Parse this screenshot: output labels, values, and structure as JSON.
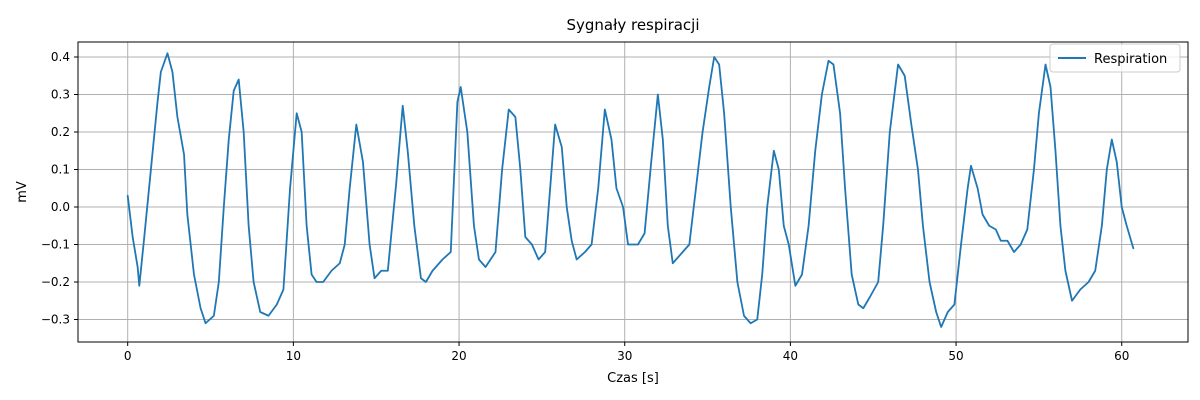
{
  "chart_data": {
    "type": "line",
    "title": "Sygnały respiracji",
    "xlabel": "Czas [s]",
    "ylabel": "mV",
    "xlim": [
      -3,
      64
    ],
    "ylim": [
      -0.36,
      0.44
    ],
    "xticks": [
      0,
      10,
      20,
      30,
      40,
      50,
      60
    ],
    "yticks": [
      -0.3,
      -0.2,
      -0.1,
      0.0,
      0.1,
      0.2,
      0.3,
      0.4
    ],
    "xtick_labels": [
      "0",
      "10",
      "20",
      "30",
      "40",
      "50",
      "60"
    ],
    "ytick_labels": [
      "−0.3",
      "−0.2",
      "−0.1",
      "0.0",
      "0.1",
      "0.2",
      "0.3",
      "0.4"
    ],
    "grid": true,
    "legend_position": "top-right",
    "colors": {
      "series": "#1f77b4",
      "grid": "#b0b0b0"
    },
    "series": [
      {
        "name": "Respiration",
        "points": [
          [
            0.0,
            0.03
          ],
          [
            0.3,
            -0.08
          ],
          [
            0.6,
            -0.16
          ],
          [
            0.7,
            -0.21
          ],
          [
            1.0,
            -0.08
          ],
          [
            1.4,
            0.1
          ],
          [
            1.8,
            0.28
          ],
          [
            2.0,
            0.36
          ],
          [
            2.4,
            0.41
          ],
          [
            2.7,
            0.36
          ],
          [
            3.0,
            0.24
          ],
          [
            3.4,
            0.14
          ],
          [
            3.6,
            -0.02
          ],
          [
            4.0,
            -0.18
          ],
          [
            4.4,
            -0.27
          ],
          [
            4.7,
            -0.31
          ],
          [
            5.2,
            -0.29
          ],
          [
            5.5,
            -0.2
          ],
          [
            5.8,
            0.0
          ],
          [
            6.1,
            0.18
          ],
          [
            6.4,
            0.31
          ],
          [
            6.7,
            0.34
          ],
          [
            7.0,
            0.2
          ],
          [
            7.3,
            -0.05
          ],
          [
            7.6,
            -0.2
          ],
          [
            8.0,
            -0.28
          ],
          [
            8.5,
            -0.29
          ],
          [
            9.0,
            -0.26
          ],
          [
            9.4,
            -0.22
          ],
          [
            9.8,
            0.05
          ],
          [
            10.2,
            0.25
          ],
          [
            10.5,
            0.2
          ],
          [
            10.8,
            -0.05
          ],
          [
            11.1,
            -0.18
          ],
          [
            11.4,
            -0.2
          ],
          [
            11.8,
            -0.2
          ],
          [
            12.3,
            -0.17
          ],
          [
            12.8,
            -0.15
          ],
          [
            13.1,
            -0.1
          ],
          [
            13.4,
            0.05
          ],
          [
            13.8,
            0.22
          ],
          [
            14.2,
            0.12
          ],
          [
            14.6,
            -0.1
          ],
          [
            14.9,
            -0.19
          ],
          [
            15.3,
            -0.17
          ],
          [
            15.7,
            -0.17
          ],
          [
            16.2,
            0.06
          ],
          [
            16.6,
            0.27
          ],
          [
            16.9,
            0.15
          ],
          [
            17.3,
            -0.05
          ],
          [
            17.7,
            -0.19
          ],
          [
            18.0,
            -0.2
          ],
          [
            18.4,
            -0.17
          ],
          [
            19.0,
            -0.14
          ],
          [
            19.5,
            -0.12
          ],
          [
            19.9,
            0.28
          ],
          [
            20.1,
            0.32
          ],
          [
            20.5,
            0.2
          ],
          [
            20.9,
            -0.05
          ],
          [
            21.2,
            -0.14
          ],
          [
            21.6,
            -0.16
          ],
          [
            22.2,
            -0.12
          ],
          [
            22.6,
            0.1
          ],
          [
            23.0,
            0.26
          ],
          [
            23.4,
            0.24
          ],
          [
            23.7,
            0.1
          ],
          [
            24.0,
            -0.08
          ],
          [
            24.4,
            -0.1
          ],
          [
            24.8,
            -0.14
          ],
          [
            25.2,
            -0.12
          ],
          [
            25.5,
            0.05
          ],
          [
            25.8,
            0.22
          ],
          [
            26.2,
            0.16
          ],
          [
            26.5,
            0.0
          ],
          [
            26.8,
            -0.09
          ],
          [
            27.1,
            -0.14
          ],
          [
            27.6,
            -0.12
          ],
          [
            28.0,
            -0.1
          ],
          [
            28.4,
            0.05
          ],
          [
            28.8,
            0.26
          ],
          [
            29.2,
            0.18
          ],
          [
            29.5,
            0.05
          ],
          [
            29.9,
            0.0
          ],
          [
            30.2,
            -0.1
          ],
          [
            30.8,
            -0.1
          ],
          [
            31.2,
            -0.07
          ],
          [
            31.6,
            0.12
          ],
          [
            32.0,
            0.3
          ],
          [
            32.3,
            0.18
          ],
          [
            32.6,
            -0.05
          ],
          [
            32.9,
            -0.15
          ],
          [
            33.5,
            -0.12
          ],
          [
            33.9,
            -0.1
          ],
          [
            34.3,
            0.05
          ],
          [
            34.7,
            0.2
          ],
          [
            35.1,
            0.32
          ],
          [
            35.4,
            0.4
          ],
          [
            35.7,
            0.38
          ],
          [
            36.0,
            0.25
          ],
          [
            36.4,
            0.0
          ],
          [
            36.8,
            -0.2
          ],
          [
            37.2,
            -0.29
          ],
          [
            37.6,
            -0.31
          ],
          [
            38.0,
            -0.3
          ],
          [
            38.3,
            -0.18
          ],
          [
            38.6,
            0.0
          ],
          [
            39.0,
            0.15
          ],
          [
            39.3,
            0.1
          ],
          [
            39.6,
            -0.05
          ],
          [
            39.9,
            -0.1
          ],
          [
            40.3,
            -0.21
          ],
          [
            40.7,
            -0.18
          ],
          [
            41.1,
            -0.05
          ],
          [
            41.5,
            0.15
          ],
          [
            41.9,
            0.3
          ],
          [
            42.3,
            0.39
          ],
          [
            42.6,
            0.38
          ],
          [
            43.0,
            0.25
          ],
          [
            43.3,
            0.05
          ],
          [
            43.7,
            -0.18
          ],
          [
            44.1,
            -0.26
          ],
          [
            44.4,
            -0.27
          ],
          [
            44.8,
            -0.24
          ],
          [
            45.3,
            -0.2
          ],
          [
            45.6,
            -0.05
          ],
          [
            46.0,
            0.2
          ],
          [
            46.5,
            0.38
          ],
          [
            46.9,
            0.35
          ],
          [
            47.3,
            0.22
          ],
          [
            47.7,
            0.1
          ],
          [
            48.0,
            -0.05
          ],
          [
            48.4,
            -0.2
          ],
          [
            48.8,
            -0.28
          ],
          [
            49.1,
            -0.32
          ],
          [
            49.5,
            -0.28
          ],
          [
            49.9,
            -0.26
          ],
          [
            50.3,
            -0.1
          ],
          [
            50.7,
            0.05
          ],
          [
            50.9,
            0.11
          ],
          [
            51.3,
            0.05
          ],
          [
            51.6,
            -0.02
          ],
          [
            52.0,
            -0.05
          ],
          [
            52.4,
            -0.06
          ],
          [
            52.7,
            -0.09
          ],
          [
            53.1,
            -0.09
          ],
          [
            53.5,
            -0.12
          ],
          [
            53.9,
            -0.1
          ],
          [
            54.3,
            -0.06
          ],
          [
            54.7,
            0.1
          ],
          [
            55.0,
            0.25
          ],
          [
            55.4,
            0.38
          ],
          [
            55.7,
            0.32
          ],
          [
            56.0,
            0.15
          ],
          [
            56.3,
            -0.05
          ],
          [
            56.6,
            -0.17
          ],
          [
            57.0,
            -0.25
          ],
          [
            57.5,
            -0.22
          ],
          [
            58.0,
            -0.2
          ],
          [
            58.4,
            -0.17
          ],
          [
            58.8,
            -0.05
          ],
          [
            59.1,
            0.1
          ],
          [
            59.4,
            0.18
          ],
          [
            59.7,
            0.12
          ],
          [
            60.0,
            0.0
          ],
          [
            60.3,
            -0.05
          ],
          [
            60.7,
            -0.11
          ]
        ]
      }
    ]
  }
}
